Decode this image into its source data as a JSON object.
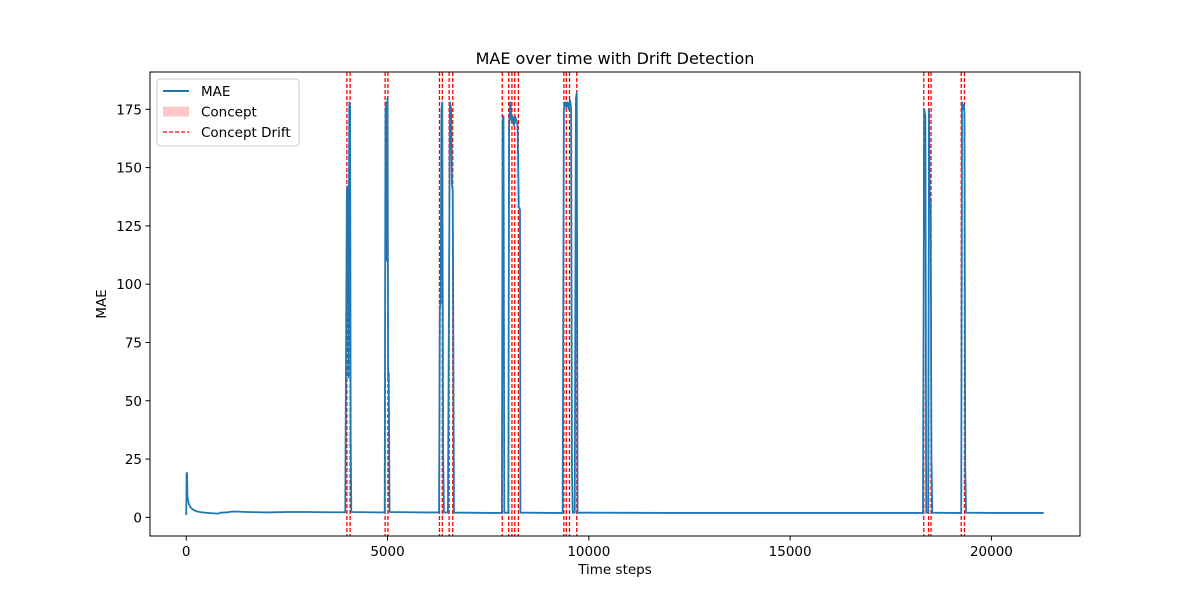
{
  "chart_data": {
    "type": "line",
    "title": "MAE over time with Drift Detection",
    "xlabel": "Time steps",
    "ylabel": "MAE",
    "xlim": [
      -900,
      22200
    ],
    "ylim": [
      -8,
      191
    ],
    "xticks": [
      0,
      5000,
      10000,
      15000,
      20000
    ],
    "yticks": [
      0,
      25,
      50,
      75,
      100,
      125,
      150,
      175
    ],
    "grid": false,
    "legend_position": "upper-left",
    "legend": [
      {
        "label": "MAE",
        "kind": "line",
        "color": "#1f77b4"
      },
      {
        "label": "Concept",
        "kind": "patch",
        "color": "#ffc8c8"
      },
      {
        "label": "Concept Drift",
        "kind": "dashed",
        "color": "#ff0000"
      }
    ],
    "series": [
      {
        "name": "MAE",
        "color": "#1f77b4",
        "points": [
          [
            0,
            1
          ],
          [
            10,
            19
          ],
          [
            20,
            19
          ],
          [
            30,
            9
          ],
          [
            60,
            6
          ],
          [
            100,
            4.5
          ],
          [
            150,
            3.5
          ],
          [
            250,
            2.6
          ],
          [
            400,
            2.1
          ],
          [
            600,
            1.8
          ],
          [
            800,
            1.6
          ],
          [
            850,
            2.0
          ],
          [
            1000,
            2.1
          ],
          [
            1100,
            2.4
          ],
          [
            1200,
            2.5
          ],
          [
            1500,
            2.3
          ],
          [
            2000,
            2.1
          ],
          [
            2500,
            2.3
          ],
          [
            3000,
            2.3
          ],
          [
            3500,
            2.2
          ],
          [
            3950,
            2.2
          ],
          [
            3990,
            140
          ],
          [
            4010,
            142
          ],
          [
            4030,
            60
          ],
          [
            4050,
            178
          ],
          [
            4070,
            176
          ],
          [
            4085,
            35
          ],
          [
            4100,
            2.3
          ],
          [
            4500,
            2.2
          ],
          [
            4930,
            2.1
          ],
          [
            4950,
            175
          ],
          [
            4970,
            178
          ],
          [
            4985,
            110
          ],
          [
            5000,
            180
          ],
          [
            5015,
            60
          ],
          [
            5030,
            62
          ],
          [
            5050,
            2.3
          ],
          [
            5500,
            2.2
          ],
          [
            6000,
            2.1
          ],
          [
            6280,
            2.1
          ],
          [
            6300,
            90
          ],
          [
            6320,
            92
          ],
          [
            6340,
            175
          ],
          [
            6360,
            178
          ],
          [
            6380,
            30
          ],
          [
            6400,
            2.1
          ],
          [
            6500,
            2.1
          ],
          [
            6550,
            178
          ],
          [
            6580,
            175
          ],
          [
            6600,
            143
          ],
          [
            6620,
            140
          ],
          [
            6640,
            47
          ],
          [
            6650,
            2.0
          ],
          [
            7000,
            2.0
          ],
          [
            7500,
            1.9
          ],
          [
            7840,
            1.9
          ],
          [
            7860,
            170
          ],
          [
            7880,
            172
          ],
          [
            7900,
            2.0
          ],
          [
            8000,
            2.0
          ],
          [
            8020,
            168
          ],
          [
            8050,
            178
          ],
          [
            8080,
            170
          ],
          [
            8110,
            172
          ],
          [
            8140,
            168
          ],
          [
            8170,
            172
          ],
          [
            8200,
            170
          ],
          [
            8230,
            168
          ],
          [
            8260,
            133
          ],
          [
            8290,
            132
          ],
          [
            8300,
            2.0
          ],
          [
            8500,
            2.0
          ],
          [
            9000,
            1.9
          ],
          [
            9350,
            1.9
          ],
          [
            9380,
            175
          ],
          [
            9410,
            178
          ],
          [
            9440,
            176
          ],
          [
            9470,
            178
          ],
          [
            9500,
            175
          ],
          [
            9530,
            179
          ],
          [
            9560,
            176
          ],
          [
            9580,
            20
          ],
          [
            9600,
            2.0
          ],
          [
            9650,
            2.0
          ],
          [
            9680,
            180
          ],
          [
            9700,
            182
          ],
          [
            9720,
            2.0
          ],
          [
            10000,
            2.0
          ],
          [
            12000,
            1.9
          ],
          [
            14000,
            1.9
          ],
          [
            16000,
            1.9
          ],
          [
            18000,
            1.9
          ],
          [
            18300,
            1.9
          ],
          [
            18330,
            175
          ],
          [
            18360,
            172
          ],
          [
            18380,
            2.0
          ],
          [
            18430,
            2.0
          ],
          [
            18450,
            175
          ],
          [
            18470,
            133
          ],
          [
            18490,
            135
          ],
          [
            18510,
            25
          ],
          [
            18530,
            2.0
          ],
          [
            19000,
            1.9
          ],
          [
            19250,
            1.9
          ],
          [
            19270,
            178
          ],
          [
            19290,
            175
          ],
          [
            19310,
            177
          ],
          [
            19330,
            174
          ],
          [
            19350,
            20
          ],
          [
            19370,
            2.0
          ],
          [
            20000,
            1.9
          ],
          [
            21000,
            1.9
          ],
          [
            21300,
            1.9
          ]
        ]
      }
    ],
    "drift_lines": [
      3990,
      4070,
      4940,
      5010,
      6290,
      6360,
      6530,
      6620,
      7850,
      8010,
      8090,
      8160,
      8250,
      9380,
      9440,
      9520,
      9700,
      18320,
      18440,
      18500,
      19250,
      19330
    ]
  }
}
